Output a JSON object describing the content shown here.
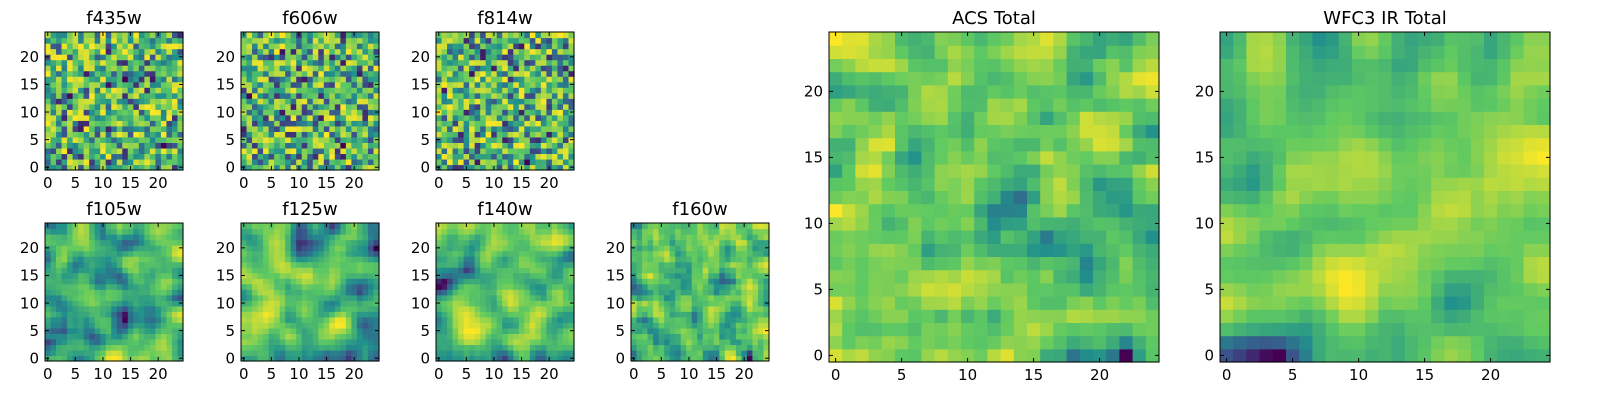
{
  "figure": {
    "colormap": [
      "#440154",
      "#3b528b",
      "#21918c",
      "#5ec962",
      "#fde725"
    ]
  },
  "chart_data": [
    {
      "type": "heatmap",
      "title": "f435w",
      "xlabel": "",
      "ylabel": "",
      "grid_size": 25,
      "xticks": [
        0,
        5,
        10,
        15,
        20
      ],
      "yticks": [
        0,
        5,
        10,
        15,
        20
      ],
      "seed": 11,
      "smooth": 0
    },
    {
      "type": "heatmap",
      "title": "f606w",
      "xlabel": "",
      "ylabel": "",
      "grid_size": 25,
      "xticks": [
        0,
        5,
        10,
        15,
        20
      ],
      "yticks": [
        0,
        5,
        10,
        15,
        20
      ],
      "seed": 23,
      "smooth": 0
    },
    {
      "type": "heatmap",
      "title": "f814w",
      "xlabel": "",
      "ylabel": "",
      "grid_size": 25,
      "xticks": [
        0,
        5,
        10,
        15,
        20
      ],
      "yticks": [
        0,
        5,
        10,
        15,
        20
      ],
      "seed": 37,
      "smooth": 0
    },
    {
      "type": "heatmap",
      "title": "f105w",
      "xlabel": "",
      "ylabel": "",
      "grid_size": 25,
      "xticks": [
        0,
        5,
        10,
        15,
        20
      ],
      "yticks": [
        0,
        5,
        10,
        15,
        20
      ],
      "seed": 41,
      "smooth": 2
    },
    {
      "type": "heatmap",
      "title": "f125w",
      "xlabel": "",
      "ylabel": "",
      "grid_size": 25,
      "xticks": [
        0,
        5,
        10,
        15,
        20
      ],
      "yticks": [
        0,
        5,
        10,
        15,
        20
      ],
      "seed": 53,
      "smooth": 2
    },
    {
      "type": "heatmap",
      "title": "f140w",
      "xlabel": "",
      "ylabel": "",
      "grid_size": 25,
      "xticks": [
        0,
        5,
        10,
        15,
        20
      ],
      "yticks": [
        0,
        5,
        10,
        15,
        20
      ],
      "seed": 67,
      "smooth": 2
    },
    {
      "type": "heatmap",
      "title": "f160w",
      "xlabel": "",
      "ylabel": "",
      "grid_size": 25,
      "xticks": [
        0,
        5,
        10,
        15,
        20
      ],
      "yticks": [
        0,
        5,
        10,
        15,
        20
      ],
      "seed": 79,
      "smooth": 1
    },
    {
      "type": "heatmap",
      "title": "ACS Total",
      "xlabel": "",
      "ylabel": "",
      "grid_size": 25,
      "xticks": [
        0,
        5,
        10,
        15,
        20
      ],
      "yticks": [
        0,
        5,
        10,
        15,
        20
      ],
      "seed": 83,
      "smooth": 1
    },
    {
      "type": "heatmap",
      "title": "WFC3 IR Total",
      "xlabel": "",
      "ylabel": "",
      "grid_size": 25,
      "xticks": [
        0,
        5,
        10,
        15,
        20
      ],
      "yticks": [
        0,
        5,
        10,
        15,
        20
      ],
      "seed": 97,
      "smooth": 2
    }
  ]
}
